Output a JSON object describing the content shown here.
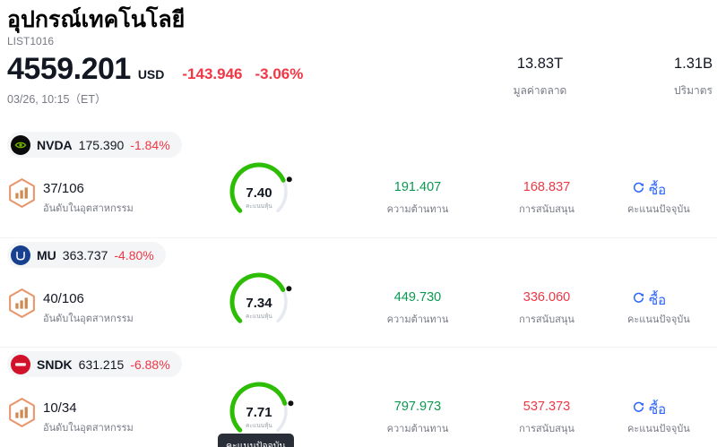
{
  "colors": {
    "text_dark": "#131722",
    "text_gray": "#787b86",
    "red": "#f23645",
    "green": "#0a9950",
    "gauge_green": "#2dbd04",
    "blue": "#2962ff",
    "pill_bg": "#f3f5f7",
    "nvda_bg": "#0b0b0b",
    "nvda_green": "#76b900",
    "mu_bg": "#17418f",
    "sndk_bg": "#d2112b",
    "hex_orange": "#e8956b",
    "hex_fill": "#cf8a52",
    "tooltip_bg": "#2a2e39"
  },
  "header": {
    "title": "อุปกรณ์เทคโนโลยี",
    "subtitle": "LIST1016",
    "price": "4559.201",
    "currency": "USD",
    "change_value": "-143.946",
    "change_pct": "-3.06%",
    "datetime": "03/26, 10:15（ET）",
    "stats": [
      {
        "value": "13.83T",
        "label": "มูลค่าตลาด"
      },
      {
        "value": "1.31B",
        "label": "ปริมาตร"
      }
    ]
  },
  "gauge": {
    "max": 10
  },
  "rows": [
    {
      "ticker": "NVDA",
      "price": "175.390",
      "change": "-1.84%",
      "rank": "37/106",
      "rank_label": "อันดับในอุตสาหกรรม",
      "score": 7.4,
      "score_display": "7.40",
      "gauge_label": "คะแนนหุ้น",
      "resistance": "191.407",
      "resistance_label": "ความต้านทาน",
      "support": "168.837",
      "support_label": "การสนับสนุน",
      "signal": "ซื้อ",
      "signal_label": "คะแนนปัจจุบัน"
    },
    {
      "ticker": "MU",
      "price": "363.737",
      "change": "-4.80%",
      "rank": "40/106",
      "rank_label": "อันดับในอุตสาหกรรม",
      "score": 7.34,
      "score_display": "7.34",
      "gauge_label": "คะแนนหุ้น",
      "resistance": "449.730",
      "resistance_label": "ความต้านทาน",
      "support": "336.060",
      "support_label": "การสนับสนุน",
      "signal": "ซื้อ",
      "signal_label": "คะแนนปัจจุบัน"
    },
    {
      "ticker": "SNDK",
      "price": "631.215",
      "change": "-6.88%",
      "rank": "10/34",
      "rank_label": "อันดับในอุตสาหกรรม",
      "score": 7.71,
      "score_display": "7.71",
      "gauge_label": "คะแนนหุ้น",
      "resistance": "797.973",
      "resistance_label": "ความต้านทาน",
      "support": "537.373",
      "support_label": "การสนับสนุน",
      "signal": "ซื้อ",
      "signal_label": "คะแนนปัจจุบัน",
      "tooltip": "คะแนนปัจจุบัน"
    }
  ]
}
